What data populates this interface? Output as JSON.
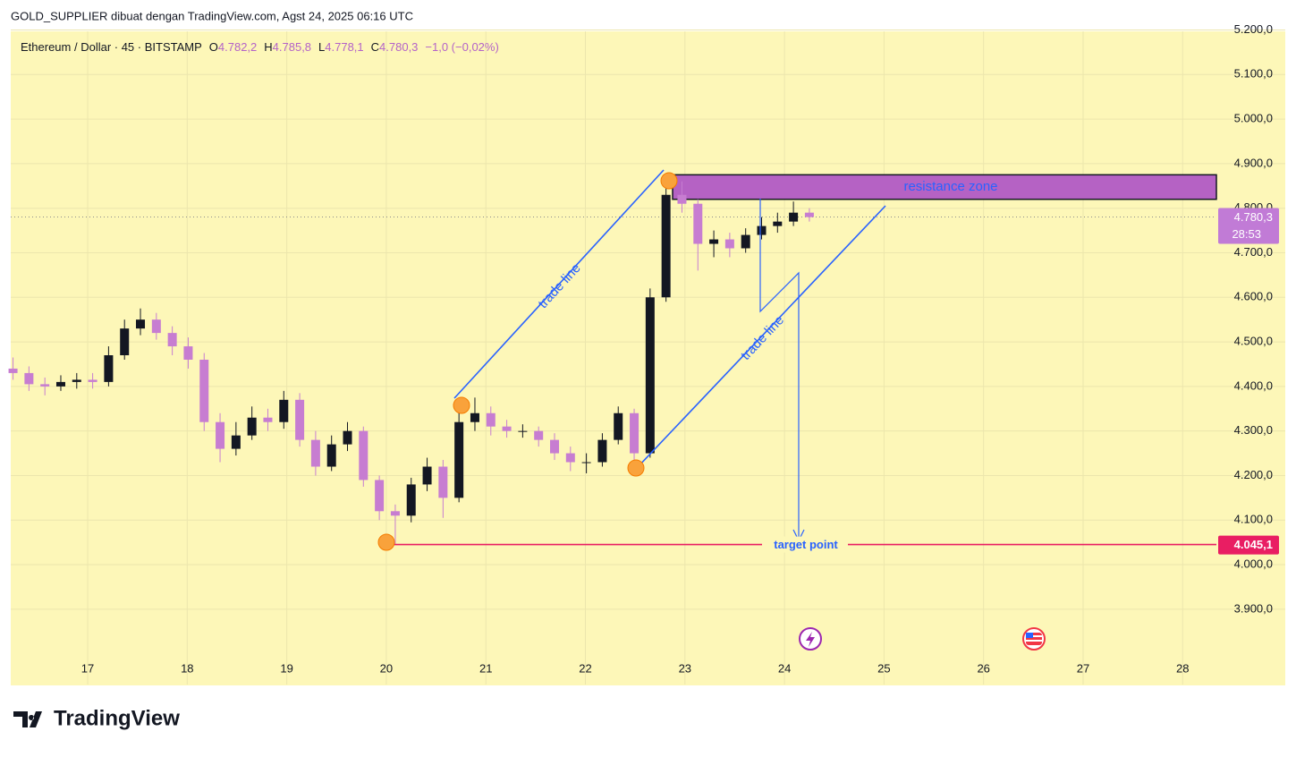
{
  "header": {
    "title": "GOLD_SUPPLIER dibuat dengan TradingView.com, Agst 24, 2025 06:16 UTC"
  },
  "footer": {
    "brand": "TradingView"
  },
  "chart_data": {
    "type": "candlestick",
    "legend": {
      "symbol": "Ethereum / Dollar · 45 · BITSTAMP",
      "o_label": "O",
      "o": "4.782,2",
      "h_label": "H",
      "h": "4.785,8",
      "l_label": "L",
      "l": "4.778,1",
      "c_label": "C",
      "c": "4.780,3",
      "change": "−1,0 (−0,02%)"
    },
    "x": [
      16.25,
      16.41,
      16.57,
      16.73,
      16.89,
      17.05,
      17.21,
      17.37,
      17.53,
      17.69,
      17.85,
      18.01,
      18.17,
      18.33,
      18.49,
      18.65,
      18.81,
      18.97,
      19.13,
      19.29,
      19.45,
      19.61,
      19.77,
      19.93,
      20.09,
      20.25,
      20.41,
      20.57,
      20.73,
      20.89,
      21.05,
      21.21,
      21.37,
      21.53,
      21.69,
      21.85,
      22.01,
      22.17,
      22.33,
      22.49,
      22.65,
      22.81,
      22.97,
      23.13,
      23.29,
      23.45,
      23.61,
      23.77,
      23.93,
      24.09,
      24.25
    ],
    "open": [
      4440,
      4430,
      4405,
      4400,
      4410,
      4415,
      4410,
      4470,
      4530,
      4550,
      4520,
      4490,
      4460,
      4320,
      4260,
      4290,
      4330,
      4320,
      4370,
      4280,
      4220,
      4270,
      4300,
      4190,
      4120,
      4110,
      4180,
      4220,
      4150,
      4320,
      4340,
      4310,
      4300,
      4300,
      4280,
      4250,
      4230,
      4230,
      4280,
      4340,
      4250,
      4600,
      4830,
      4810,
      4720,
      4730,
      4710,
      4740,
      4760,
      4770,
      4790
    ],
    "high": [
      4465,
      4445,
      4420,
      4425,
      4430,
      4430,
      4490,
      4550,
      4575,
      4565,
      4535,
      4510,
      4475,
      4340,
      4320,
      4355,
      4350,
      4390,
      4385,
      4300,
      4290,
      4320,
      4310,
      4200,
      4135,
      4195,
      4240,
      4235,
      4360,
      4375,
      4355,
      4325,
      4315,
      4310,
      4295,
      4265,
      4250,
      4295,
      4355,
      4350,
      4620,
      4875,
      4860,
      4820,
      4750,
      4745,
      4755,
      4780,
      4790,
      4815,
      4800
    ],
    "low": [
      4415,
      4390,
      4380,
      4390,
      4395,
      4395,
      4400,
      4460,
      4515,
      4505,
      4470,
      4440,
      4300,
      4230,
      4245,
      4280,
      4300,
      4305,
      4265,
      4200,
      4210,
      4255,
      4175,
      4100,
      4045,
      4095,
      4165,
      4105,
      4140,
      4300,
      4290,
      4285,
      4285,
      4265,
      4235,
      4210,
      4205,
      4220,
      4270,
      4220,
      4240,
      4590,
      4790,
      4660,
      4690,
      4690,
      4700,
      4730,
      4745,
      4760,
      4770
    ],
    "close": [
      4430,
      4405,
      4400,
      4410,
      4415,
      4410,
      4470,
      4530,
      4550,
      4520,
      4490,
      4460,
      4320,
      4260,
      4290,
      4330,
      4320,
      4370,
      4280,
      4220,
      4270,
      4300,
      4190,
      4120,
      4110,
      4180,
      4220,
      4150,
      4320,
      4340,
      4310,
      4300,
      4300,
      4280,
      4250,
      4230,
      4230,
      4280,
      4340,
      4250,
      4600,
      4830,
      4810,
      4720,
      4730,
      4710,
      4740,
      4760,
      4770,
      4790,
      4780
    ],
    "up_color": "#131722",
    "down_color": "#c77dd1",
    "xlim": [
      16.227,
      28.339
    ],
    "xticks": [
      17,
      18,
      19,
      20,
      21,
      22,
      23,
      24,
      25,
      26,
      27,
      28
    ],
    "ylim": [
      3731,
      5197
    ],
    "yticks": [
      {
        "value": 3900,
        "label": "3.900,0"
      },
      {
        "value": 4000,
        "label": "4.000,0"
      },
      {
        "value": 4100,
        "label": "4.100,0"
      },
      {
        "value": 4200,
        "label": "4.200,0"
      },
      {
        "value": 4300,
        "label": "4.300,0"
      },
      {
        "value": 4400,
        "label": "4.400,0"
      },
      {
        "value": 4500,
        "label": "4.500,0"
      },
      {
        "value": 4600,
        "label": "4.600,0"
      },
      {
        "value": 4700,
        "label": "4.700,0"
      },
      {
        "value": 4800,
        "label": "4.800,0"
      },
      {
        "value": 4900,
        "label": "4.900,0"
      },
      {
        "value": 5000,
        "label": "5.000,0"
      },
      {
        "value": 5100,
        "label": "5.100,0"
      },
      {
        "value": 5200,
        "label": "5.200,0"
      }
    ],
    "grid": true,
    "current_price": {
      "value": 4780.3,
      "label": "4.780,3",
      "countdown": "28:53"
    },
    "target": {
      "value": 4045.1,
      "label": "4.045,1",
      "text": "target point"
    },
    "resistance": {
      "low": 4820,
      "high": 4875,
      "text": "resistance zone"
    },
    "trade_line_text": [
      "trade line",
      "trade line"
    ]
  }
}
